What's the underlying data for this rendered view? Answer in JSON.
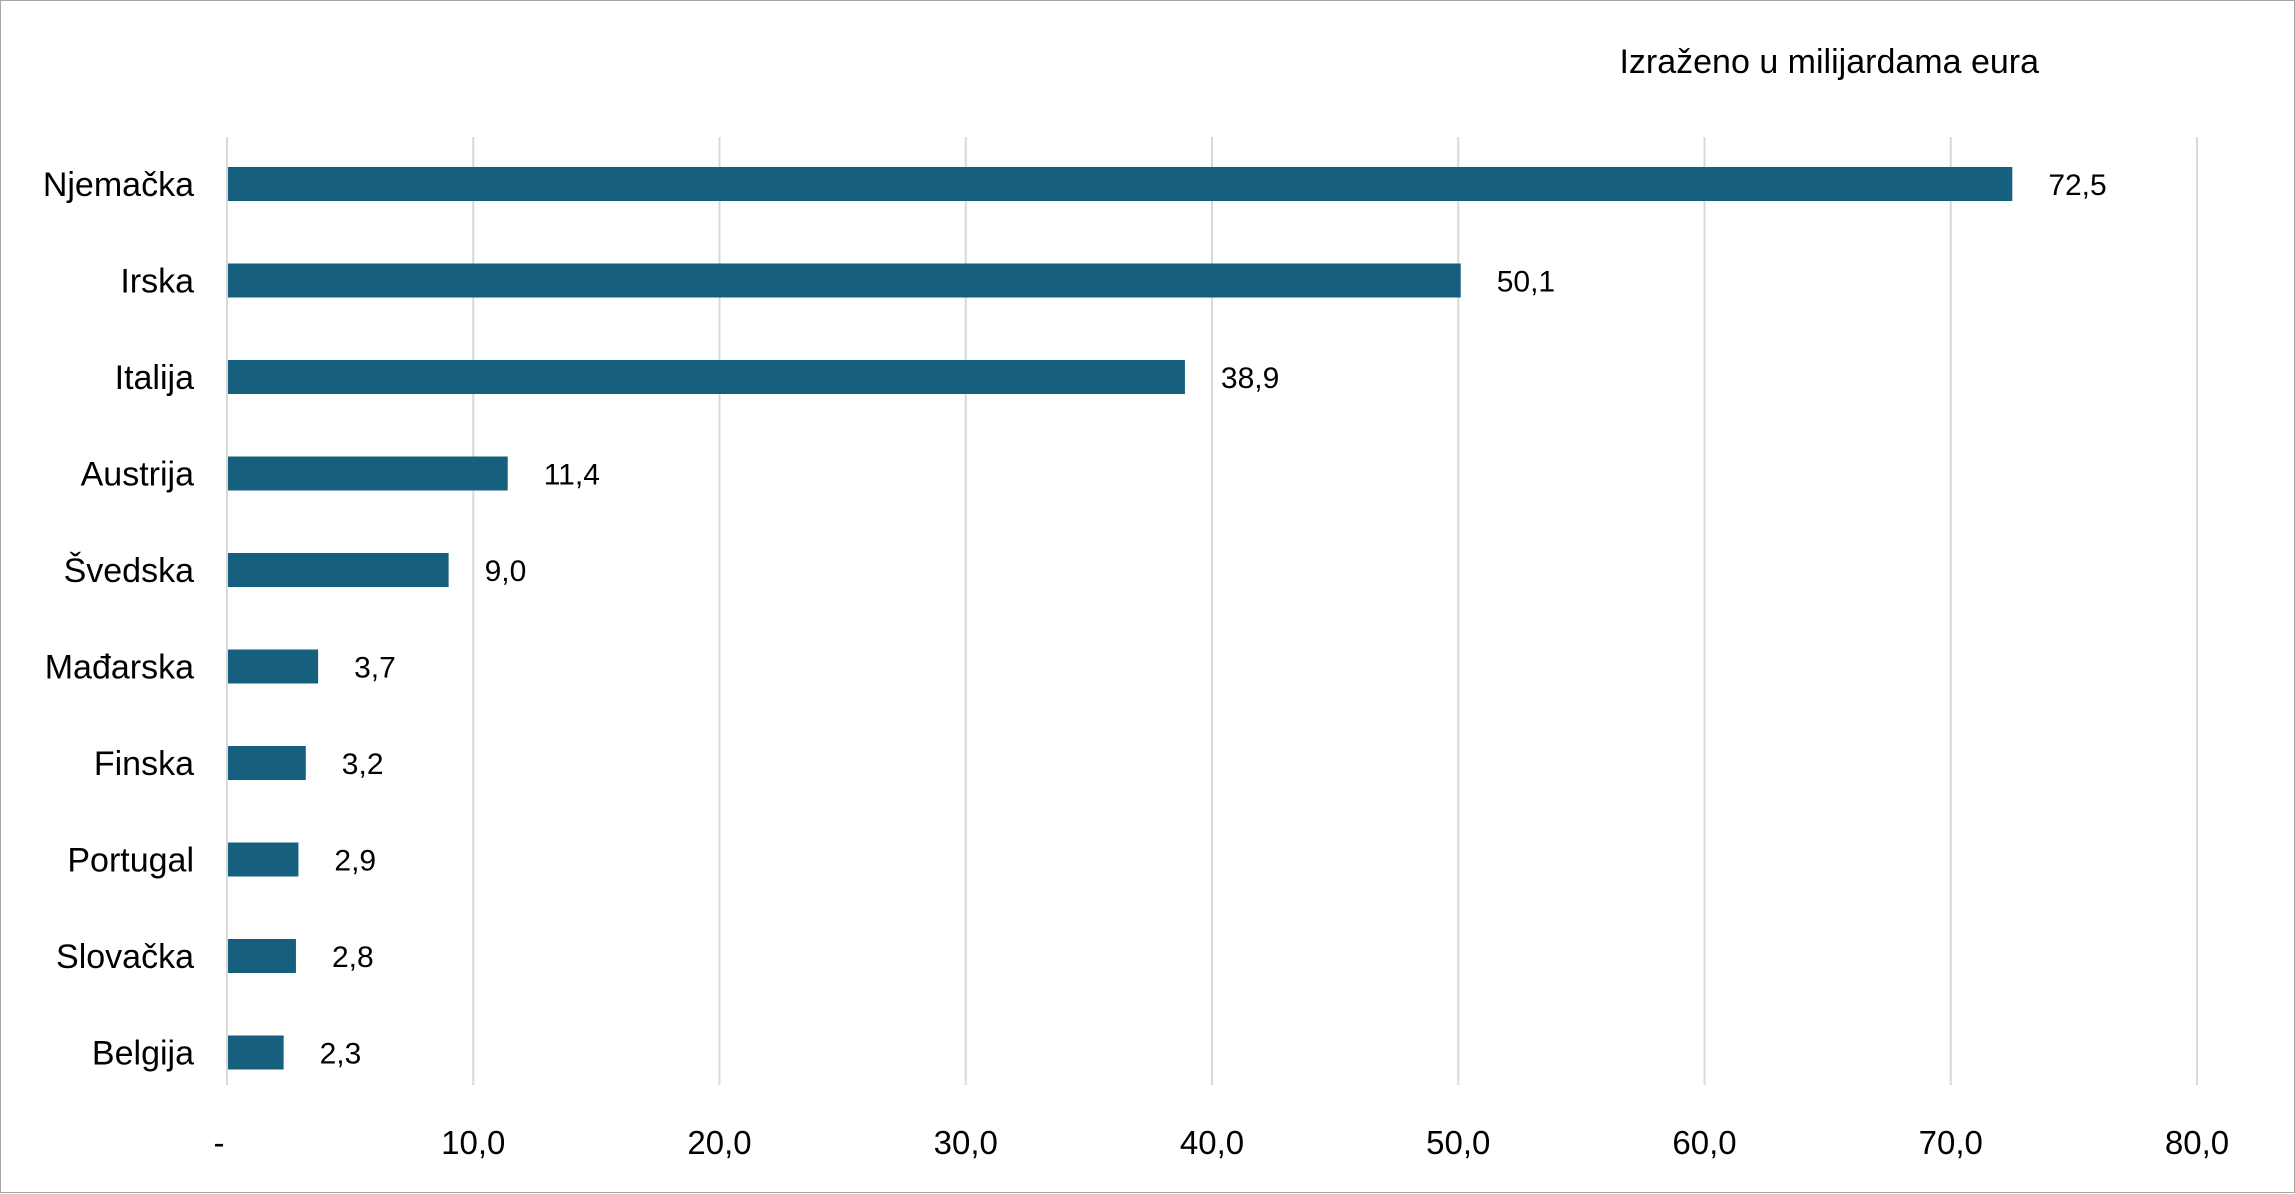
{
  "chart_data": {
    "type": "bar",
    "orientation": "horizontal",
    "unit_note": "Izraženo u milijardama eura",
    "categories": [
      "Njemačka",
      "Irska",
      "Italija",
      "Austrija",
      "Švedska",
      "Mađarska",
      "Finska",
      "Portugal",
      "Slovačka",
      "Belgija"
    ],
    "values": [
      72.5,
      50.1,
      38.9,
      11.4,
      9.0,
      3.7,
      3.2,
      2.9,
      2.8,
      2.3
    ],
    "value_labels": [
      "72,5",
      "50,1",
      "38,9",
      "11,4",
      "9,0",
      "3,7",
      "3,2",
      "2,9",
      "2,8",
      "2,3"
    ],
    "xlim": [
      0,
      80
    ],
    "x_ticks": [
      0,
      10,
      20,
      30,
      40,
      50,
      60,
      70,
      80
    ],
    "x_tick_labels": [
      "-",
      "10,0",
      "20,0",
      "30,0",
      "40,0",
      "50,0",
      "60,0",
      "70,0",
      "80,0"
    ],
    "grid": "vertical",
    "legend": "none",
    "bar_color": "#175f7f",
    "grid_color": "#d9d9d9"
  }
}
